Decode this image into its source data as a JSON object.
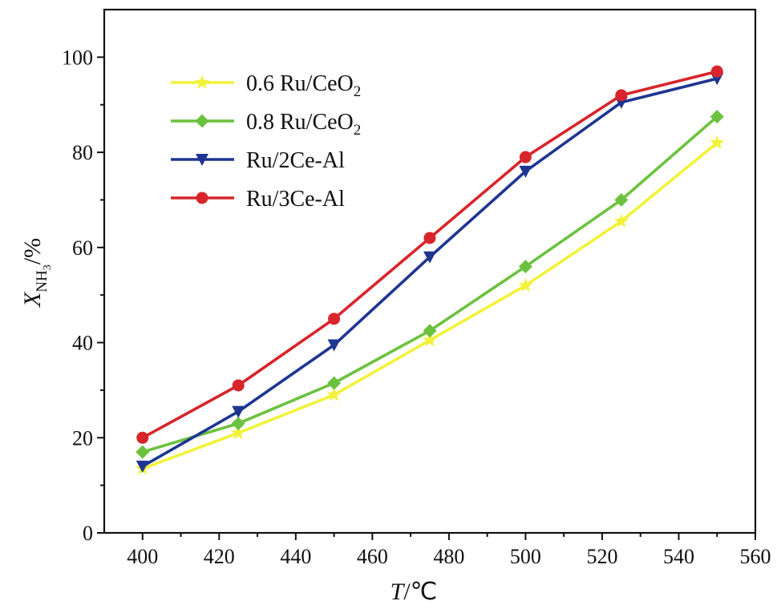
{
  "chart_data": {
    "type": "line",
    "x": [
      400,
      425,
      450,
      475,
      500,
      525,
      550
    ],
    "xlim": [
      390,
      560
    ],
    "ylim": [
      0,
      110
    ],
    "xticks": [
      400,
      420,
      440,
      460,
      480,
      500,
      520,
      540,
      560
    ],
    "yticks": [
      0,
      20,
      40,
      60,
      80,
      100
    ],
    "xlabel": {
      "main": "T",
      "suffix": "/℃"
    },
    "ylabel": {
      "main": "X",
      "sub": "NH",
      "subsub": "3",
      "suffix": "/%"
    },
    "grid": false,
    "legend_position": "top-left",
    "series": [
      {
        "name": "0.6 Ru/CeO",
        "name_sub": "2",
        "color": "#f2f23a",
        "marker": "star",
        "values": [
          13.5,
          21,
          29,
          40.5,
          52,
          65.5,
          82
        ]
      },
      {
        "name": "0.8 Ru/CeO",
        "name_sub": "2",
        "color": "#6cc23f",
        "marker": "diamond",
        "values": [
          17,
          23,
          31.5,
          42.5,
          56,
          70,
          87.5
        ]
      },
      {
        "name": "Ru/2Ce-Al",
        "color": "#1e3592",
        "marker": "triangle-down",
        "values": [
          14,
          25.5,
          39.5,
          58,
          76,
          90.5,
          95.5
        ]
      },
      {
        "name": "Ru/3Ce-Al",
        "color": "#d8252b",
        "marker": "circle",
        "values": [
          20,
          31,
          45,
          62,
          79,
          92,
          97
        ]
      }
    ]
  }
}
